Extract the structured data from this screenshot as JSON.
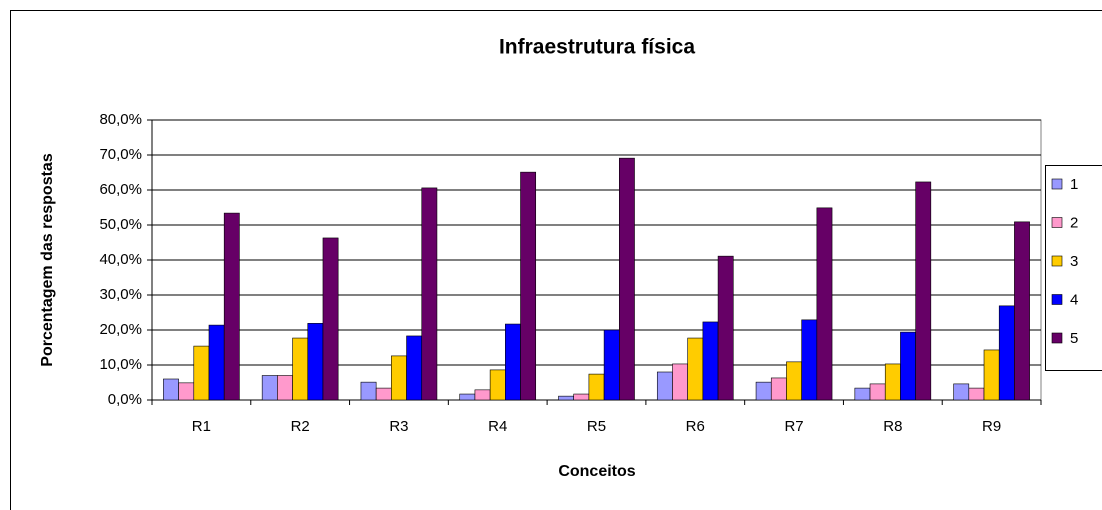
{
  "chart_data": {
    "type": "bar",
    "title": "Infraestrutura física",
    "xlabel": "Conceitos",
    "ylabel": "Porcentagem das respostas",
    "categories": [
      "R1",
      "R2",
      "R3",
      "R4",
      "R5",
      "R6",
      "R7",
      "R8",
      "R9"
    ],
    "series": [
      {
        "name": "1",
        "color": "#9999ff",
        "values": [
          6.0,
          7.0,
          5.1,
          1.7,
          1.1,
          8.0,
          5.1,
          3.4,
          4.6
        ]
      },
      {
        "name": "2",
        "color": "#ff99cc",
        "values": [
          4.9,
          7.0,
          3.4,
          2.9,
          1.7,
          10.3,
          6.3,
          4.6,
          3.4
        ]
      },
      {
        "name": "3",
        "color": "#ffcc00",
        "values": [
          15.4,
          17.7,
          12.6,
          8.6,
          7.4,
          17.7,
          10.9,
          10.3,
          14.3
        ]
      },
      {
        "name": "4",
        "color": "#0000ff",
        "values": [
          21.4,
          21.9,
          18.3,
          21.7,
          20.0,
          22.3,
          22.9,
          19.4,
          26.9
        ]
      },
      {
        "name": "5",
        "color": "#660066",
        "values": [
          53.4,
          46.3,
          60.6,
          65.1,
          69.1,
          41.1,
          54.9,
          62.3,
          50.9
        ]
      }
    ],
    "ylim": [
      0,
      80
    ],
    "yticks": [
      {
        "value": 0,
        "label": "0,0%"
      },
      {
        "value": 10,
        "label": "10,0%"
      },
      {
        "value": 20,
        "label": "20,0%"
      },
      {
        "value": 30,
        "label": "30,0%"
      },
      {
        "value": 40,
        "label": "40,0%"
      },
      {
        "value": 50,
        "label": "50,0%"
      },
      {
        "value": 60,
        "label": "60,0%"
      },
      {
        "value": 70,
        "label": "70,0%"
      },
      {
        "value": 80,
        "label": "80,0%"
      }
    ],
    "grid": true,
    "legend": "right"
  }
}
